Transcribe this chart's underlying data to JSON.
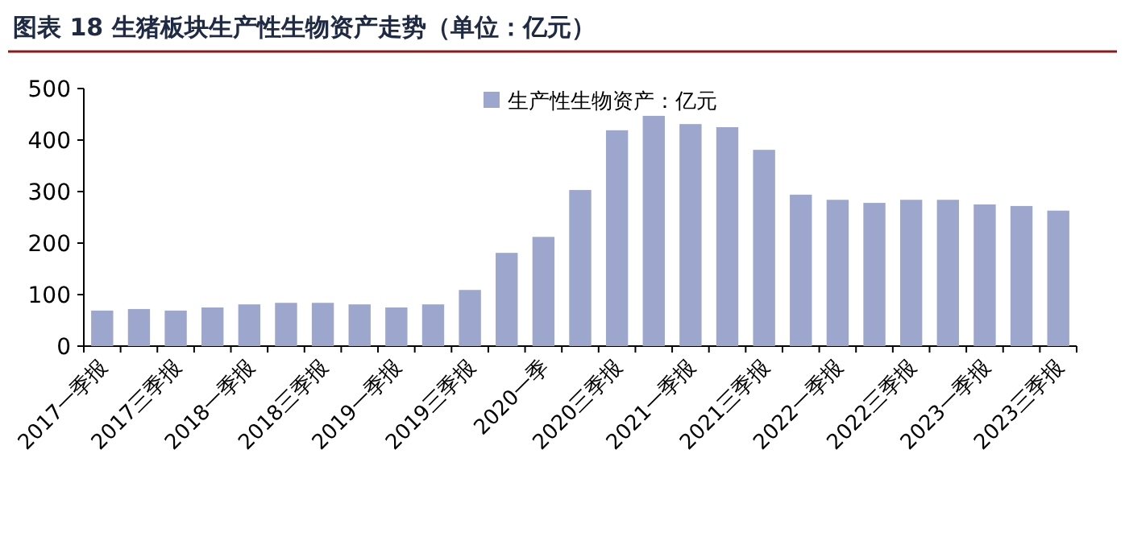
{
  "chart_data": {
    "type": "bar",
    "title": "图表 18   生猪板块生产性生物资产走势（单位：亿元）",
    "categories": [
      "2017一季报",
      null,
      "2017三季报",
      null,
      "2018一季报",
      null,
      "2018三季报",
      null,
      "2019一季报",
      null,
      "2019三季报",
      null,
      "2020一季",
      null,
      "2020三季报",
      null,
      "2021一季报",
      null,
      "2021三季报",
      null,
      "2022一季报",
      null,
      "2022三季报",
      null,
      "2023一季报",
      null,
      "2023三季报"
    ],
    "series": [
      {
        "name": "生产性生物资产：亿元",
        "color": "#9da6cc",
        "values": [
          69,
          72,
          69,
          75,
          81,
          84,
          84,
          81,
          75,
          81,
          109,
          181,
          212,
          303,
          419,
          447,
          431,
          425,
          381,
          294,
          284,
          278,
          284,
          284,
          275,
          272,
          263
        ]
      }
    ],
    "ylim": [
      0,
      500
    ],
    "yticks": [
      0,
      100,
      200,
      300,
      400,
      500
    ],
    "legend": "top"
  }
}
